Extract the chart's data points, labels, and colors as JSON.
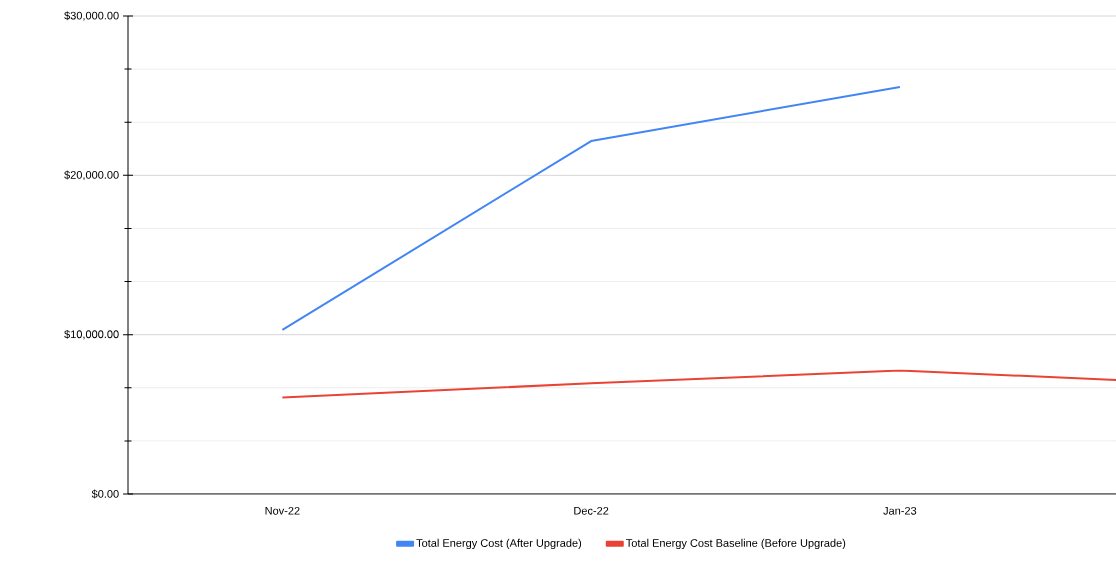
{
  "chart_data": {
    "type": "line",
    "categories": [
      "Nov-22",
      "Dec-22",
      "Jan-23",
      null
    ],
    "series": [
      {
        "name": "Total Energy Cost (After Upgrade)",
        "color": "#4285f4",
        "values": [
          10300,
          22150,
          25550,
          null
        ]
      },
      {
        "name": "Total Energy Cost Baseline (Before Upgrade)",
        "color": "#ea4335",
        "values": [
          6050,
          6950,
          7750,
          6900
        ]
      }
    ],
    "ylim": [
      0,
      30000
    ],
    "yticks": [
      {
        "value": 0,
        "label": "$0.00"
      },
      {
        "value": 3333.33,
        "label": null
      },
      {
        "value": 6666.67,
        "label": null
      },
      {
        "value": 10000,
        "label": "$10,000.00"
      },
      {
        "value": 13333.33,
        "label": null
      },
      {
        "value": 16666.67,
        "label": null
      },
      {
        "value": 20000,
        "label": "$20,000.00"
      },
      {
        "value": 23333.33,
        "label": null
      },
      {
        "value": 26666.67,
        "label": null
      },
      {
        "value": 30000,
        "label": "$30,000.00"
      }
    ],
    "grid": "y",
    "legend": "bottom",
    "marker": "none",
    "line_style": "solid"
  }
}
